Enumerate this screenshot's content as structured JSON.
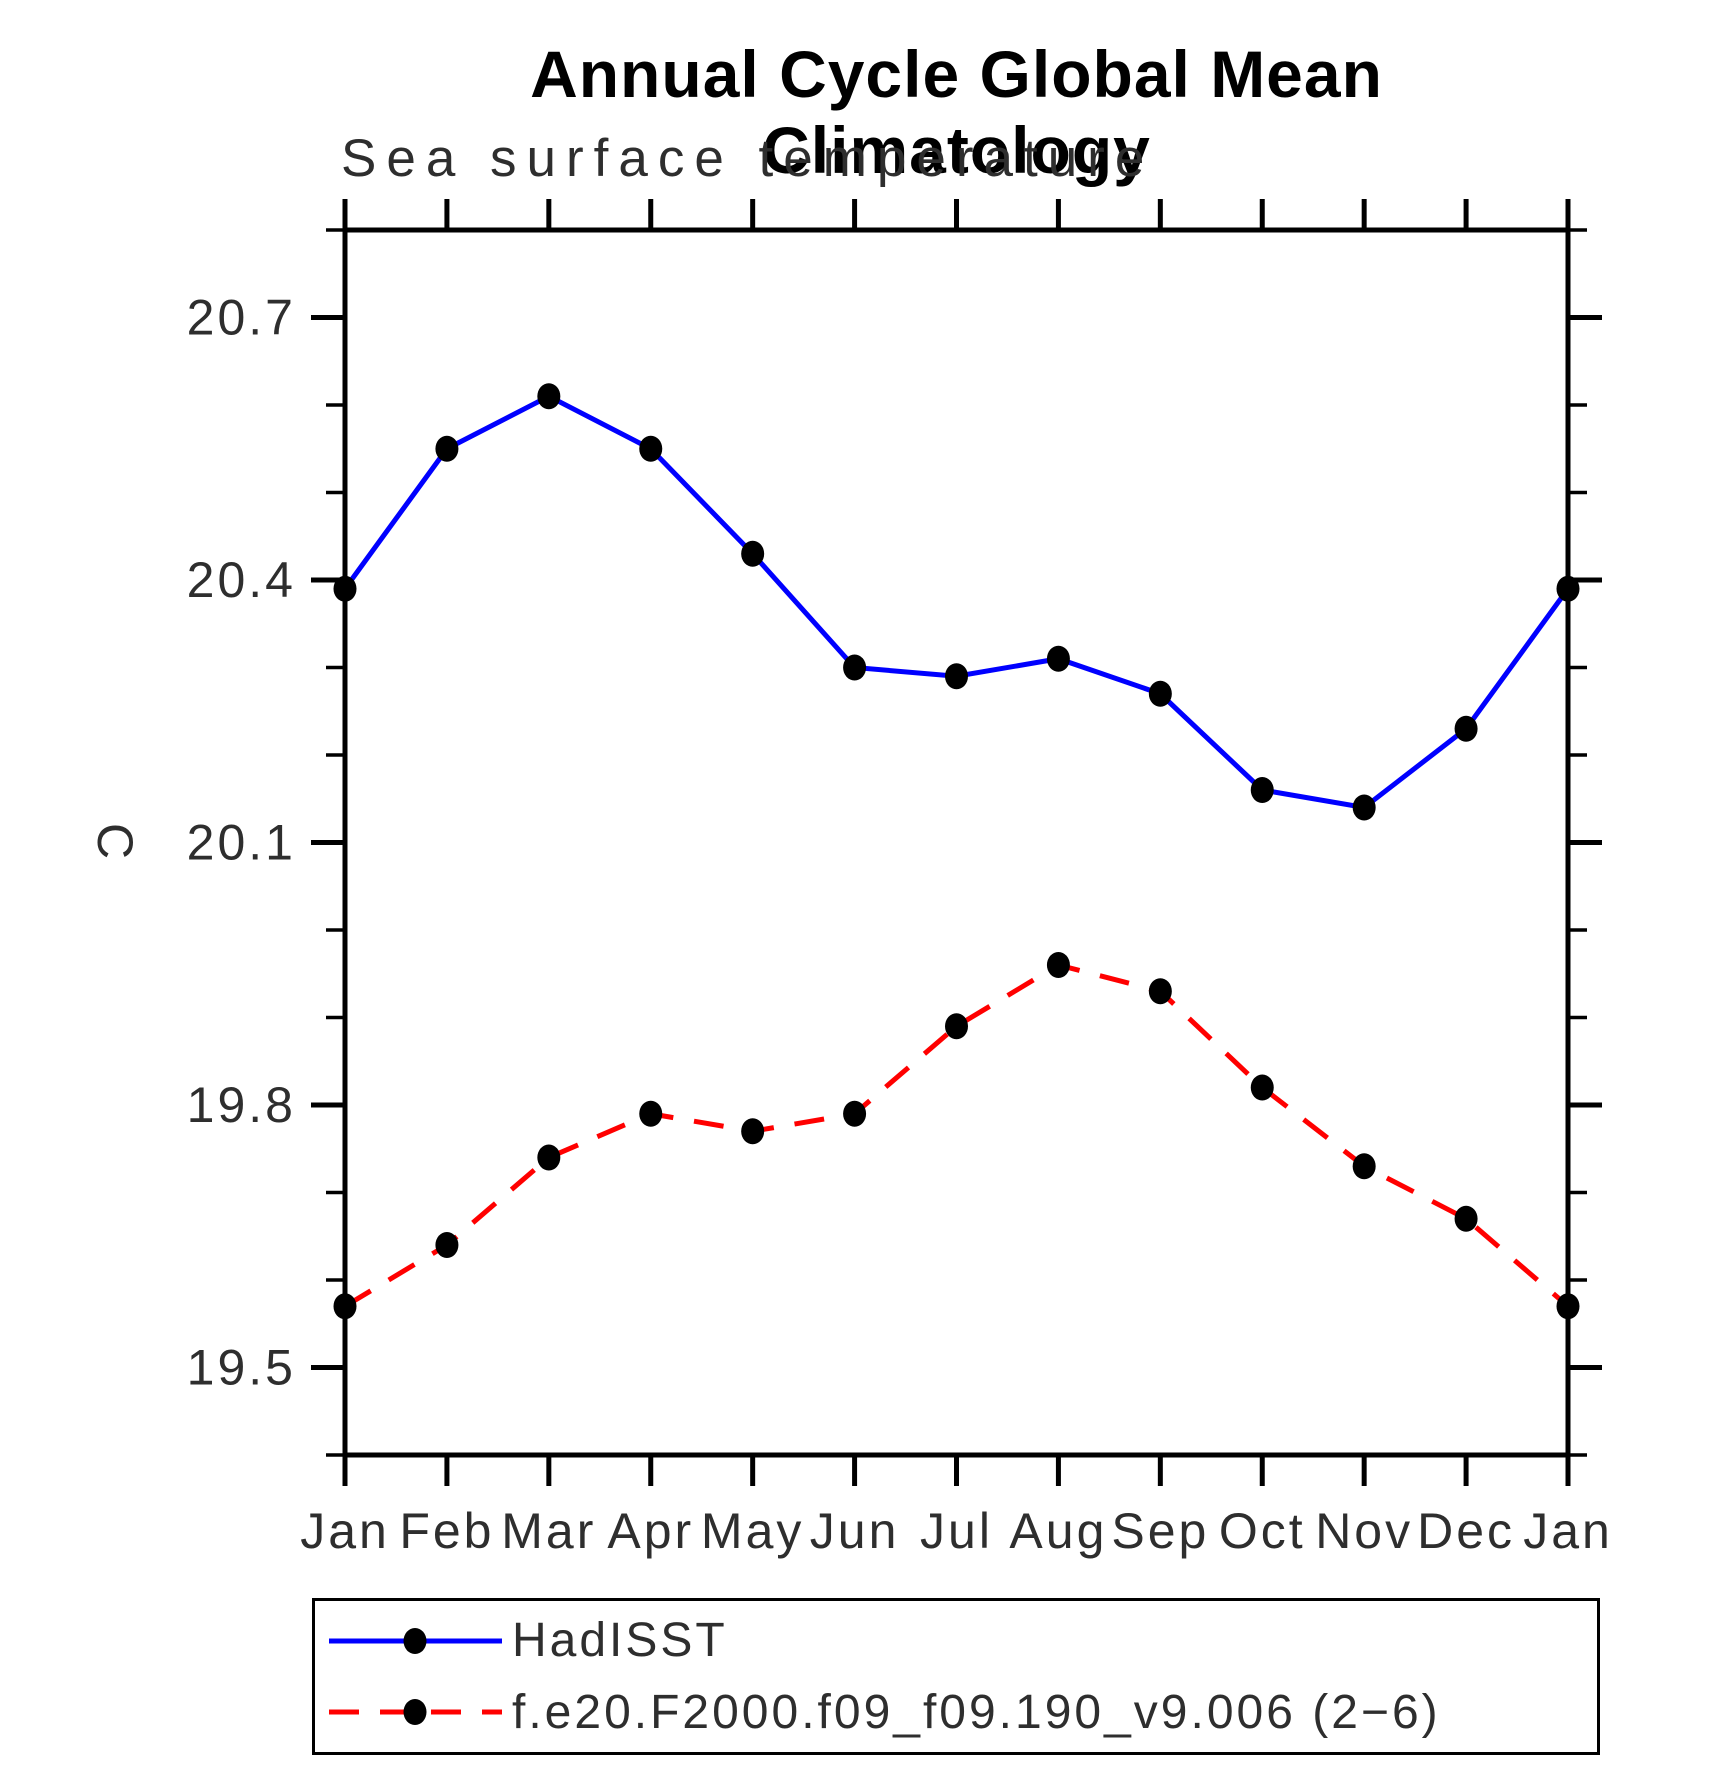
{
  "chart_data": {
    "type": "line",
    "title": "Annual Cycle Global Mean Climatology",
    "subtitle": "Sea surface temperature",
    "ylabel": "C",
    "x_labels": [
      "Jan",
      "Feb",
      "Mar",
      "Apr",
      "May",
      "Jun",
      "Jul",
      "Aug",
      "Sep",
      "Oct",
      "Nov",
      "Dec",
      "Jan"
    ],
    "ylim": [
      19.4,
      20.8
    ],
    "yticks_major": [
      19.5,
      19.8,
      20.1,
      20.4,
      20.7
    ],
    "ytick_labels": [
      "19.5",
      "19.8",
      "20.1",
      "20.4",
      "20.7"
    ],
    "ytick_minor_step": 0.1,
    "grid": false,
    "legend_position": "bottom",
    "axis_color": "#000000",
    "series": [
      {
        "name": "HadISST",
        "color": "#0000ff",
        "line_style": "solid",
        "marker": "circle",
        "marker_color": "#000000",
        "values": [
          20.39,
          20.55,
          20.61,
          20.55,
          20.43,
          20.3,
          20.29,
          20.31,
          20.27,
          20.16,
          20.14,
          20.23,
          20.39
        ]
      },
      {
        "name": "f.e20.F2000.f09_f09.190_v9.006 (2−6)",
        "color": "#ff0000",
        "line_style": "dashed",
        "marker": "circle",
        "marker_color": "#000000",
        "values": [
          19.57,
          19.64,
          19.74,
          19.79,
          19.77,
          19.79,
          19.89,
          19.96,
          19.93,
          19.82,
          19.73,
          19.67,
          19.57
        ]
      }
    ]
  }
}
